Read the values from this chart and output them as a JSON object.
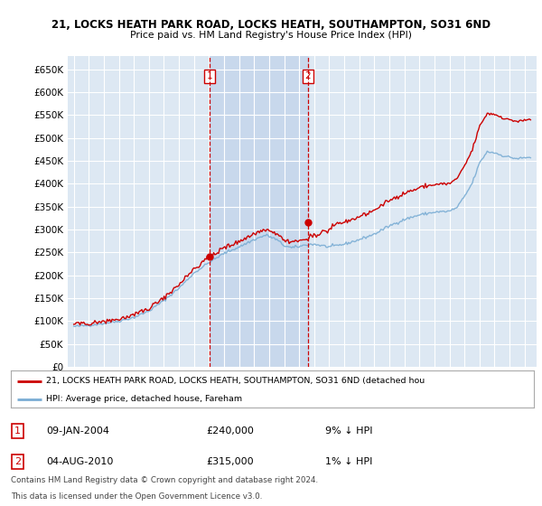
{
  "title": "21, LOCKS HEATH PARK ROAD, LOCKS HEATH, SOUTHAMPTON, SO31 6ND",
  "subtitle": "Price paid vs. HM Land Registry's House Price Index (HPI)",
  "legend_label_red": "21, LOCKS HEATH PARK ROAD, LOCKS HEATH, SOUTHAMPTON, SO31 6ND (detached hou",
  "legend_label_blue": "HPI: Average price, detached house, Fareham",
  "t1_x": 2004.03,
  "t1_y": 240000,
  "t2_x": 2010.58,
  "t2_y": 315000,
  "t1_date": "09-JAN-2004",
  "t1_price": "£240,000",
  "t1_hpi": "9% ↓ HPI",
  "t2_date": "04-AUG-2010",
  "t2_price": "£315,000",
  "t2_hpi": "1% ↓ HPI",
  "footnote_line1": "Contains HM Land Registry data © Crown copyright and database right 2024.",
  "footnote_line2": "This data is licensed under the Open Government Licence v3.0.",
  "ylim": [
    0,
    680000
  ],
  "xlim_start": 1994.6,
  "xlim_end": 2025.8,
  "bg_color": "#ffffff",
  "plot_bg": "#dde8f3",
  "grid_color": "#ffffff",
  "red_color": "#cc0000",
  "blue_color": "#7aadd4",
  "shade_color": "#c8d8ec"
}
